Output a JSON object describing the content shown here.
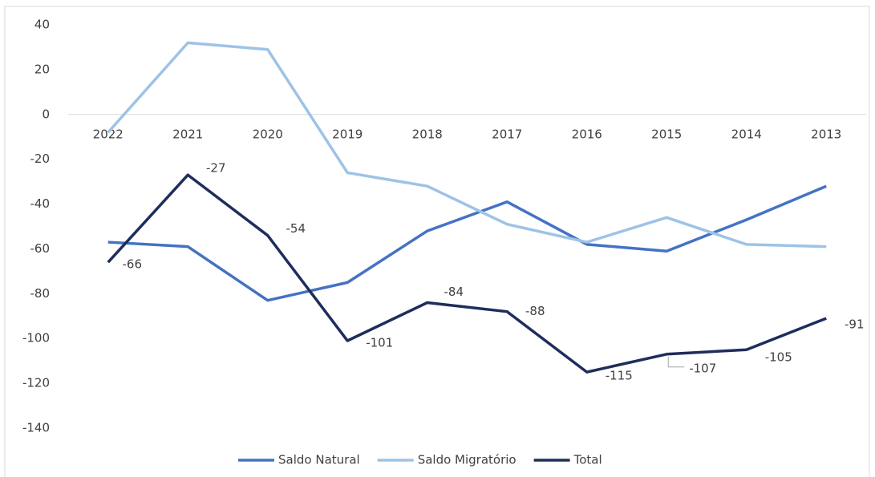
{
  "chart_data": {
    "type": "line",
    "categories": [
      "2022",
      "2021",
      "2020",
      "2019",
      "2018",
      "2017",
      "2016",
      "2015",
      "2014",
      "2013"
    ],
    "series": [
      {
        "name": "Saldo Natural",
        "color": "#4472c4",
        "values": [
          -57,
          -59,
          -83,
          -75,
          -52,
          -39,
          -58,
          -61,
          -47,
          -32
        ]
      },
      {
        "name": "Saldo Migratório",
        "color": "#9dc3e6",
        "values": [
          -8,
          32,
          29,
          -26,
          -32,
          -49,
          -57,
          -46,
          -58,
          -59
        ]
      },
      {
        "name": "Total",
        "color": "#1f2d5c",
        "values": [
          -66,
          -27,
          -54,
          -101,
          -84,
          -88,
          -115,
          -107,
          -105,
          -91
        ],
        "data_labels": true
      }
    ],
    "ylim": [
      -140,
      40
    ],
    "yticks": [
      -140,
      -120,
      -100,
      -80,
      -60,
      -40,
      -20,
      0,
      20,
      40
    ],
    "grid": false,
    "legend": "bottom"
  }
}
